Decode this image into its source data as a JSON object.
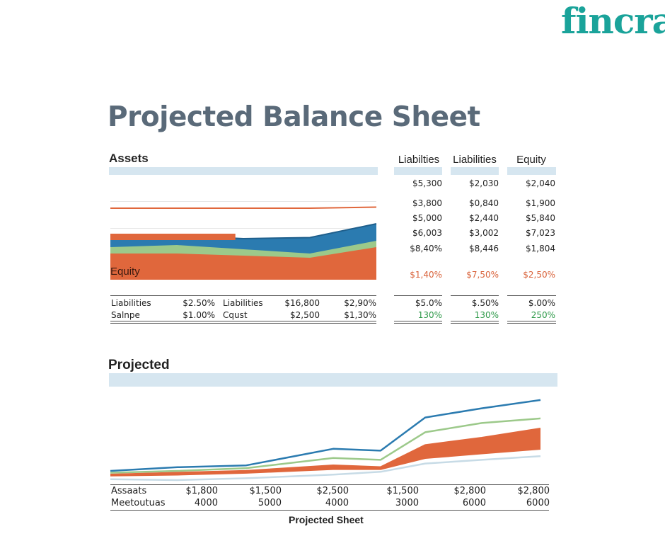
{
  "brand": {
    "logo_text": "fincrat"
  },
  "page_title": "Projected Balance Sheet",
  "colors": {
    "blue": "#2b7bb0",
    "green": "#9cc98a",
    "orange": "#e0673c",
    "lightblue": "#c7dbe6"
  },
  "top_chart": {
    "title": "Assets",
    "overlay_label": "Equity",
    "bottom_rows": [
      {
        "label": "Liabilities",
        "c1": "$2.50%",
        "label2": "Liabilities",
        "c2": "$16,800",
        "c3": "$2,90%"
      },
      {
        "label": "Salnpe",
        "c1": "$1.00%",
        "label2": "Cqust",
        "c2": "$2,500",
        "c3": "$1,30%"
      }
    ]
  },
  "right_table": {
    "headers": [
      "Liabilties",
      "Liabilities",
      "Equity"
    ],
    "rows": [
      [
        "$5,300",
        "$2,030",
        "$2,040"
      ],
      [
        "$3,800",
        "$0,840",
        "$1,900"
      ],
      [
        "$5,000",
        "$2,440",
        "$5,840"
      ],
      [
        "$6,003",
        "$3,002",
        "$7,023"
      ],
      [
        "$8,40%",
        "$8,446",
        "$1,804"
      ]
    ],
    "highlight_row": [
      "$1,40%",
      "$7,50%",
      "$2,50%"
    ],
    "pct_row": [
      "$5.0%",
      "$.50%",
      "$.00%"
    ],
    "green_row": [
      "130%",
      "130%",
      "250%"
    ]
  },
  "bottom_chart": {
    "title": "Projected",
    "footer": "Projected Sheet",
    "row1_label": "Assaats",
    "row2_label": "Meetoutuas",
    "row1": [
      "$1,800",
      "$1,500",
      "$2,500",
      "$1,500",
      "$2,800",
      "$2,800"
    ],
    "row2": [
      "4000",
      "5000",
      "4000",
      "3000",
      "6000",
      "6000"
    ]
  },
  "chart_data": [
    {
      "type": "area",
      "title": "Assets",
      "x": [
        0,
        1,
        2,
        3,
        4
      ],
      "series": [
        {
          "color": "#e0673c",
          "values": [
            28,
            28,
            26,
            24,
            34
          ]
        },
        {
          "color": "#9cc98a",
          "values": [
            34,
            36,
            32,
            28,
            40
          ]
        },
        {
          "color": "#2b7bb0",
          "values": [
            44,
            45,
            42,
            43,
            56
          ]
        }
      ],
      "lines": [
        {
          "color": "#e0673c",
          "values": [
            84,
            84,
            84,
            84,
            85
          ]
        }
      ],
      "bars": [
        {
          "color": "#e0673c",
          "value": 0.47
        }
      ],
      "ylim": [
        0,
        100
      ]
    },
    {
      "type": "line",
      "title": "Projected",
      "x": [
        0,
        1,
        2,
        3,
        4,
        5,
        6,
        7
      ],
      "series": [
        {
          "color": "#2b7bb0",
          "values": [
            10,
            14,
            16,
            34,
            32,
            68,
            78,
            87
          ]
        },
        {
          "color": "#9cc98a",
          "values": [
            8,
            10,
            13,
            24,
            22,
            52,
            62,
            67
          ]
        },
        {
          "color": "#e0673c",
          "values": [
            6,
            8,
            10,
            16,
            14,
            38,
            46,
            56
          ]
        },
        {
          "color": "#e0673c",
          "values": [
            5,
            6,
            8,
            12,
            12,
            24,
            29,
            34
          ]
        },
        {
          "color": "#c7dbe6",
          "values": [
            1,
            0,
            2,
            6,
            9,
            18,
            22,
            26
          ]
        }
      ],
      "ylim": [
        0,
        100
      ]
    }
  ]
}
